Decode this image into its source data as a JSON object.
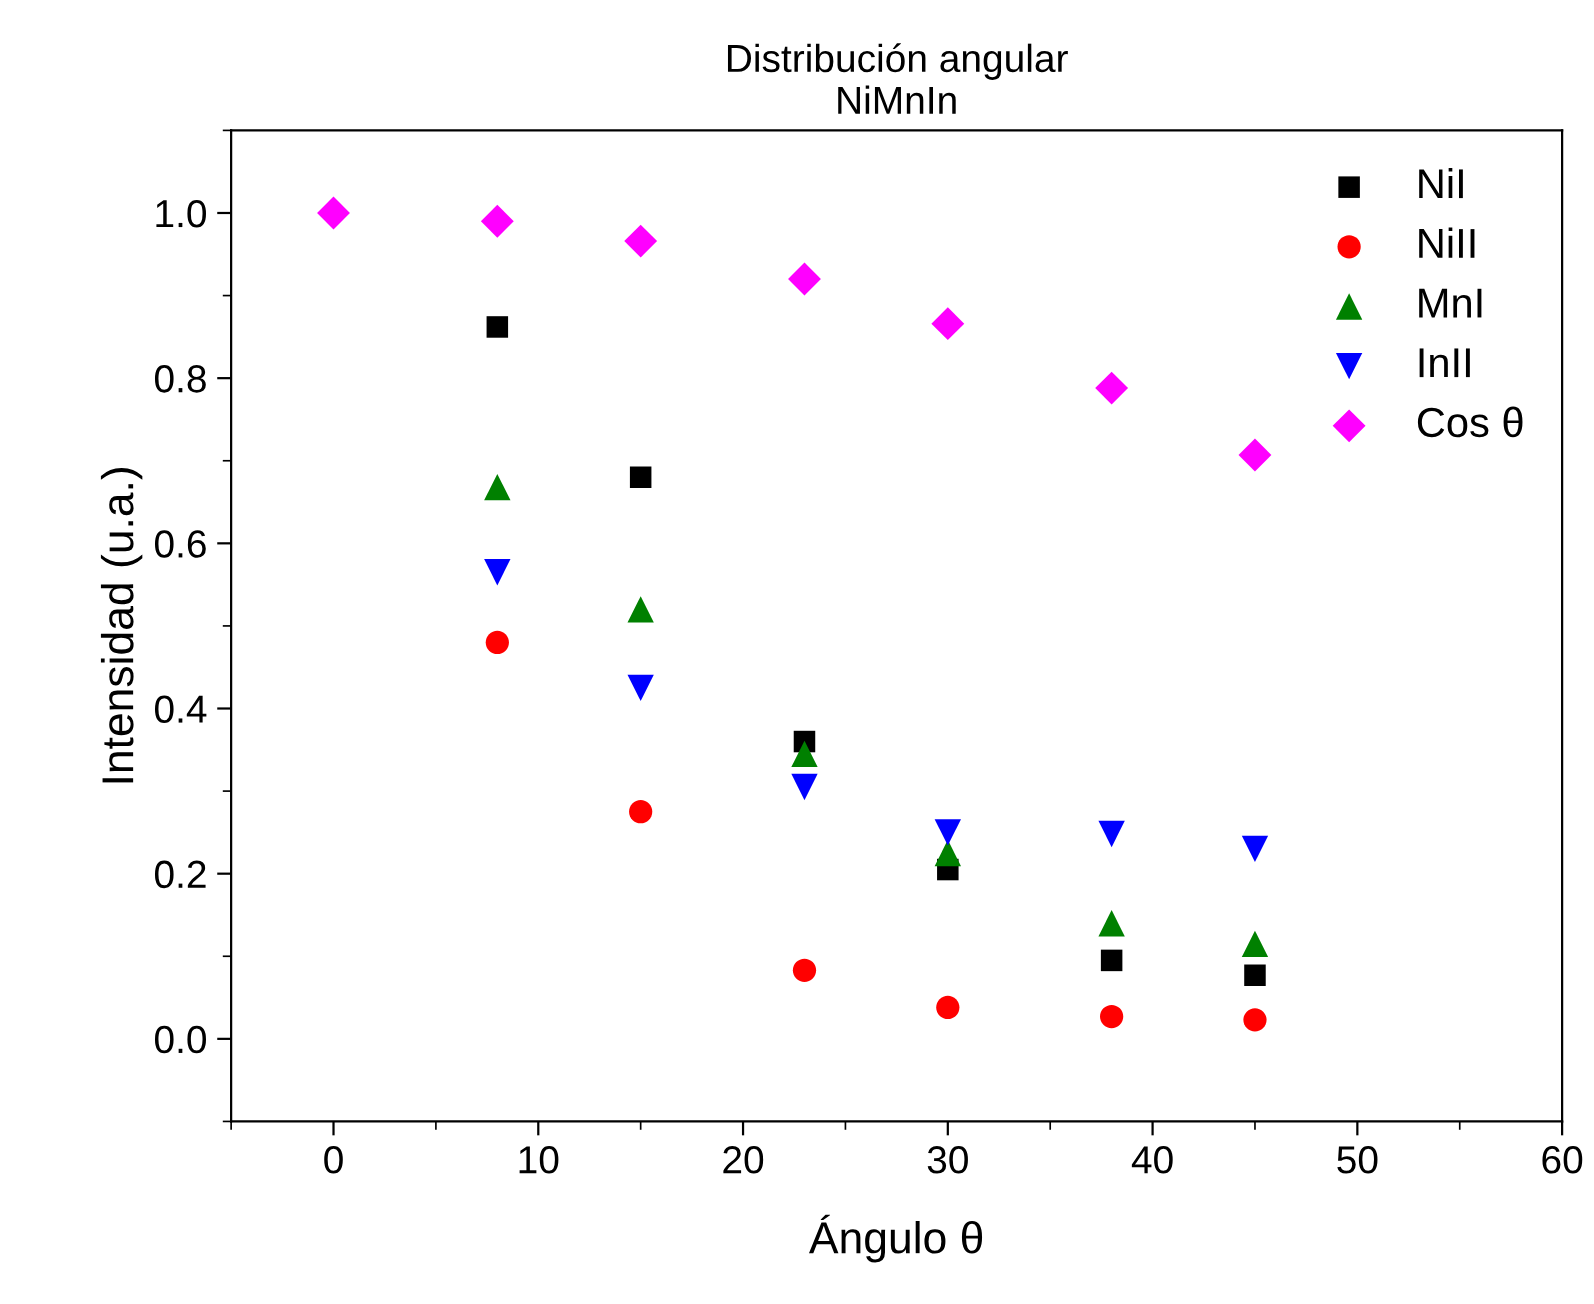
{
  "chart_data": {
    "type": "scatter",
    "title": "Distribución angular\nNiMnIn",
    "xlabel": "Ángulo θ",
    "ylabel": "Intensidad (u.a.)",
    "x": [
      0,
      8,
      15,
      23,
      30,
      38,
      45
    ],
    "series": [
      {
        "name": "NiI",
        "color": "#000000",
        "marker": "square",
        "values": [
          null,
          0.862,
          0.68,
          0.36,
          0.205,
          0.095,
          0.077
        ]
      },
      {
        "name": "NiII",
        "color": "#ff0000",
        "marker": "circle",
        "values": [
          null,
          0.48,
          0.275,
          0.083,
          0.038,
          0.027,
          0.023
        ]
      },
      {
        "name": "MnI",
        "color": "#008000",
        "marker": "triangle",
        "values": [
          null,
          0.668,
          0.52,
          0.345,
          0.225,
          0.14,
          0.115
        ]
      },
      {
        "name": "InII",
        "color": "#0000ff",
        "marker": "triangle_down",
        "values": [
          null,
          0.565,
          0.425,
          0.305,
          0.25,
          0.248,
          0.23
        ]
      },
      {
        "name": "Cos θ",
        "color": "#ff00ff",
        "marker": "diamond",
        "values": [
          1.0,
          0.99,
          0.966,
          0.92,
          0.866,
          0.788,
          0.707
        ]
      }
    ],
    "xlim": [
      -5,
      60
    ],
    "xticks": [
      0,
      10,
      20,
      30,
      40,
      50,
      60
    ],
    "ylim": [
      -0.1,
      1.1
    ],
    "yticks": [
      {
        "value": 0,
        "label": "0.0"
      },
      0.2,
      0.4,
      0.6,
      0.8,
      {
        "value": 1,
        "label": "1.0"
      }
    ],
    "grid": false,
    "legend": "top right"
  }
}
